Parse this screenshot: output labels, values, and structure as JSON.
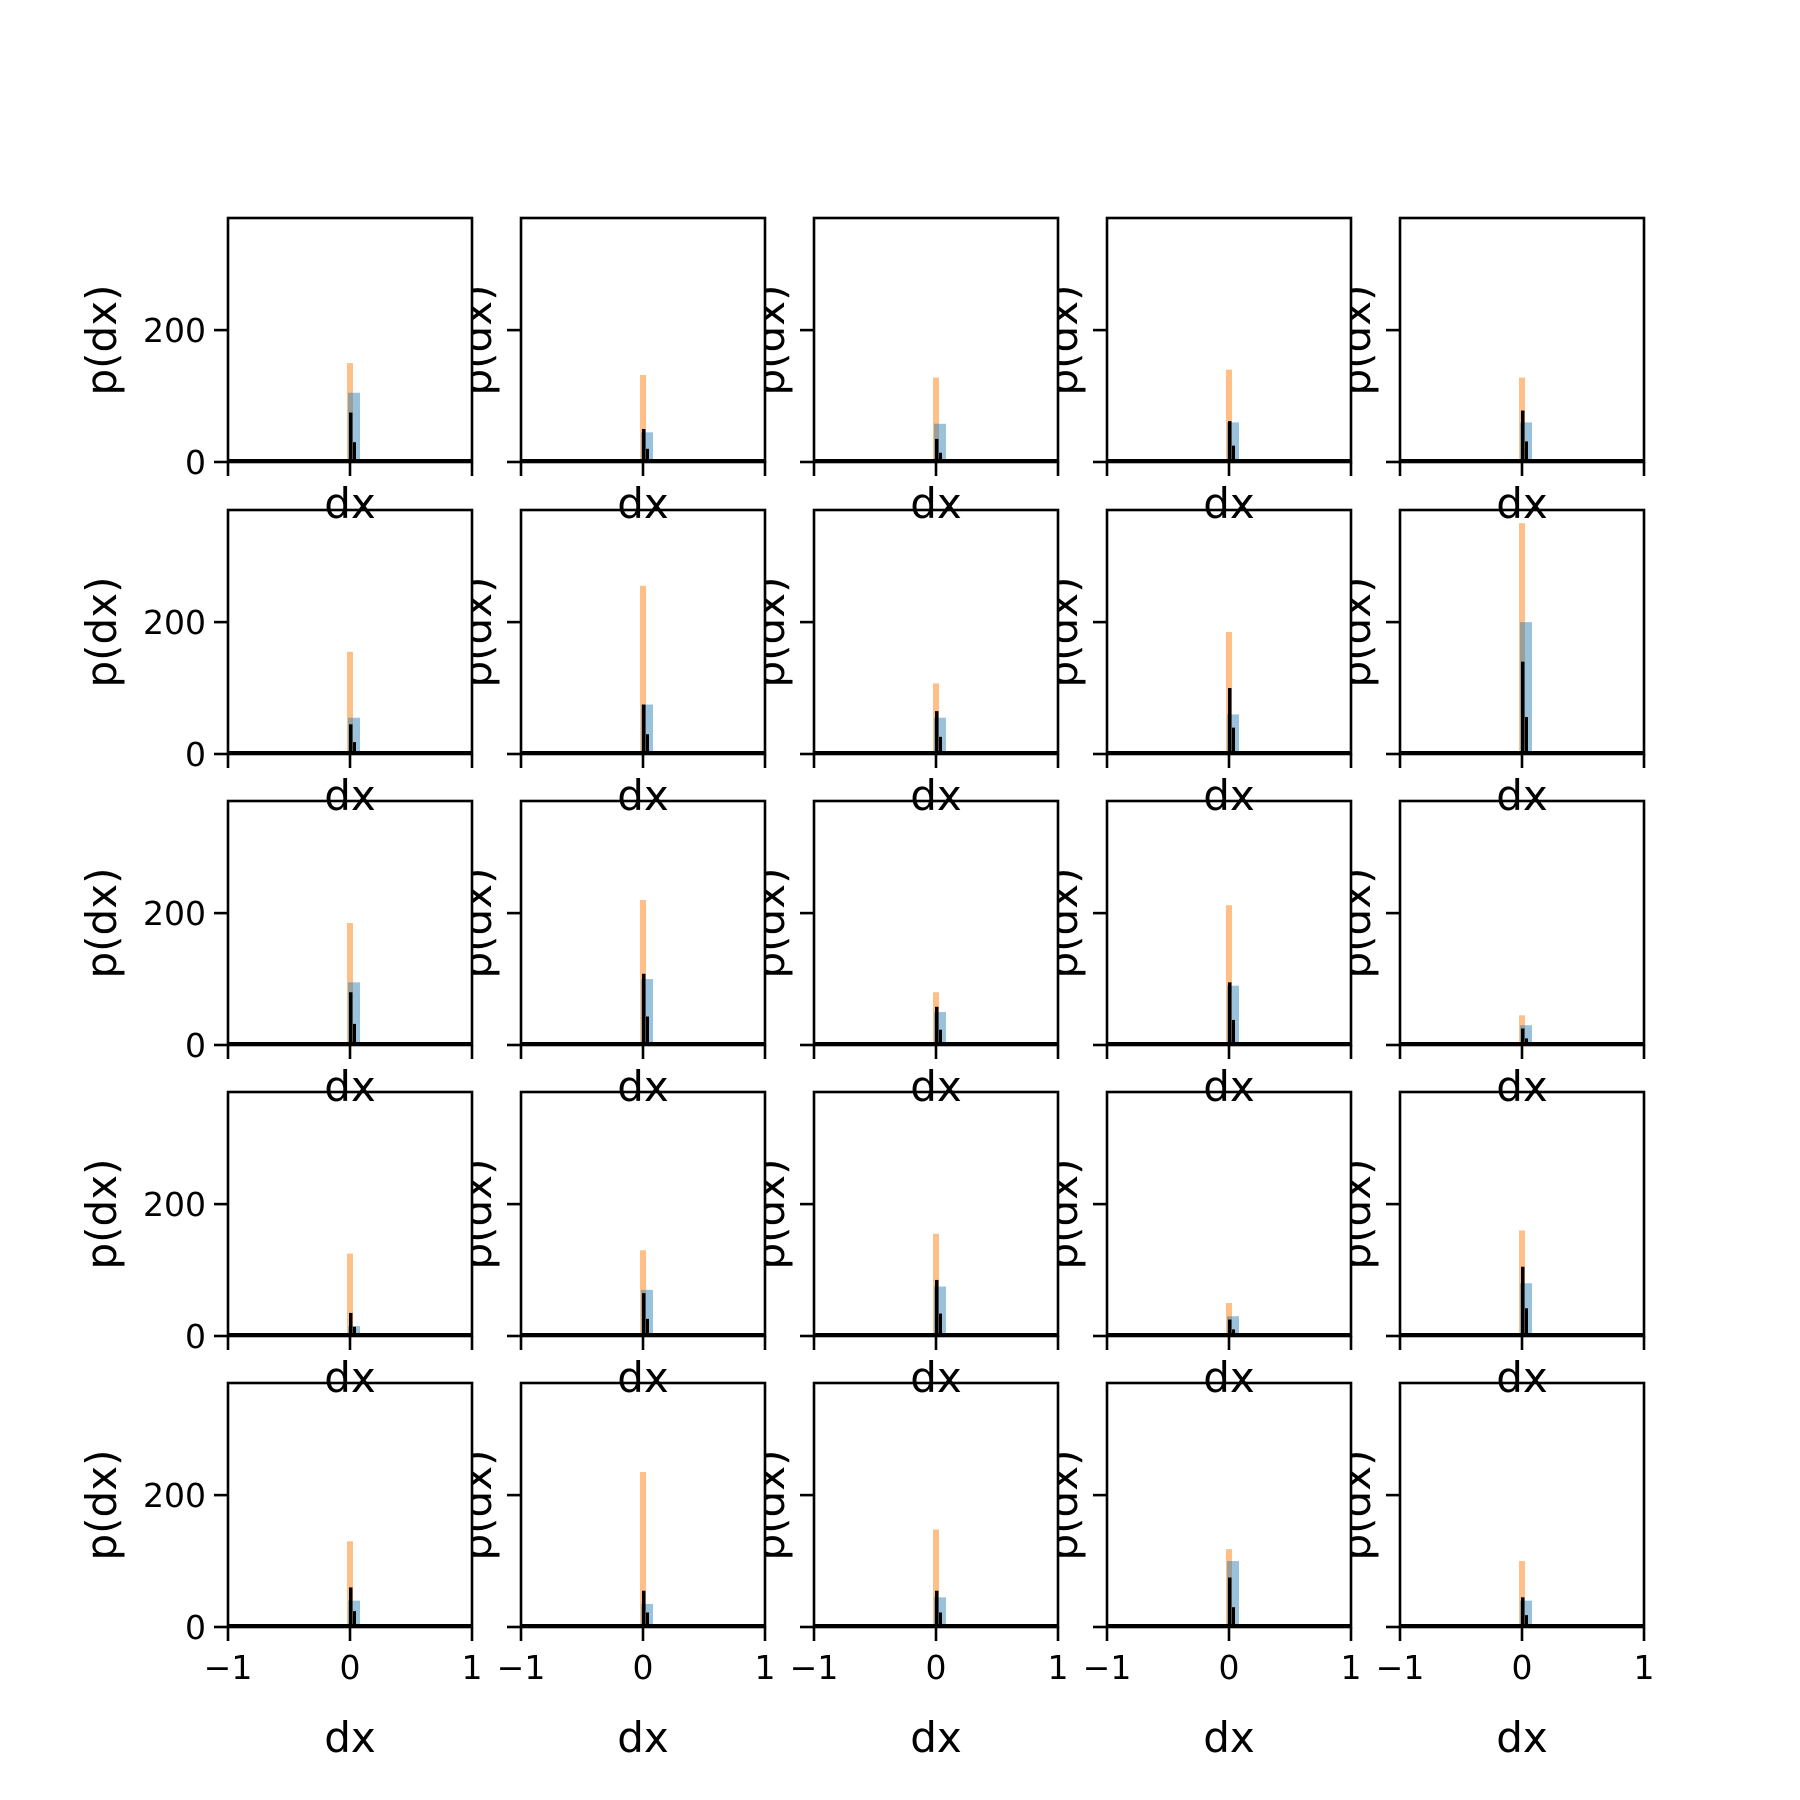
{
  "chart_data": {
    "type": "bar",
    "layout": "grid of 5 rows x 5 columns of histogram panels",
    "xlabel": "dx",
    "ylabel": "p(dx)",
    "xlim": [
      -1,
      1
    ],
    "ylim": [
      0,
      370
    ],
    "x_ticks": [
      -1,
      0,
      1
    ],
    "x_tick_labels": [
      "−1",
      "0",
      "1"
    ],
    "y_ticks": [
      0,
      200
    ],
    "y_tick_labels": [
      "0",
      "200"
    ],
    "grid": false,
    "legend": "none",
    "series_colors": {
      "orange": "#ff7f0e",
      "blue": "#1f77b4",
      "black": "#000000"
    },
    "panels": [
      [
        {
          "orange": 150,
          "blue": 105,
          "black": 75
        },
        {
          "orange": 132,
          "blue": 45,
          "black": 50
        },
        {
          "orange": 128,
          "blue": 58,
          "black": 35
        },
        {
          "orange": 140,
          "blue": 60,
          "black": 62
        },
        {
          "orange": 128,
          "blue": 60,
          "black": 78
        }
      ],
      [
        {
          "orange": 155,
          "blue": 55,
          "black": 45
        },
        {
          "orange": 255,
          "blue": 75,
          "black": 75
        },
        {
          "orange": 107,
          "blue": 55,
          "black": 65
        },
        {
          "orange": 185,
          "blue": 60,
          "black": 100
        },
        {
          "orange": 350,
          "blue": 200,
          "black": 140
        }
      ],
      [
        {
          "orange": 185,
          "blue": 95,
          "black": 80
        },
        {
          "orange": 220,
          "blue": 100,
          "black": 108
        },
        {
          "orange": 80,
          "blue": 50,
          "black": 58
        },
        {
          "orange": 212,
          "blue": 90,
          "black": 95
        },
        {
          "orange": 45,
          "blue": 30,
          "black": 25
        }
      ],
      [
        {
          "orange": 125,
          "blue": 15,
          "black": 35
        },
        {
          "orange": 130,
          "blue": 70,
          "black": 65
        },
        {
          "orange": 155,
          "blue": 75,
          "black": 85
        },
        {
          "orange": 50,
          "blue": 30,
          "black": 25
        },
        {
          "orange": 160,
          "blue": 80,
          "black": 105
        }
      ],
      [
        {
          "orange": 130,
          "blue": 40,
          "black": 60
        },
        {
          "orange": 235,
          "blue": 35,
          "black": 55
        },
        {
          "orange": 148,
          "blue": 45,
          "black": 55
        },
        {
          "orange": 118,
          "blue": 100,
          "black": 75
        },
        {
          "orange": 100,
          "blue": 40,
          "black": 45
        }
      ]
    ]
  }
}
